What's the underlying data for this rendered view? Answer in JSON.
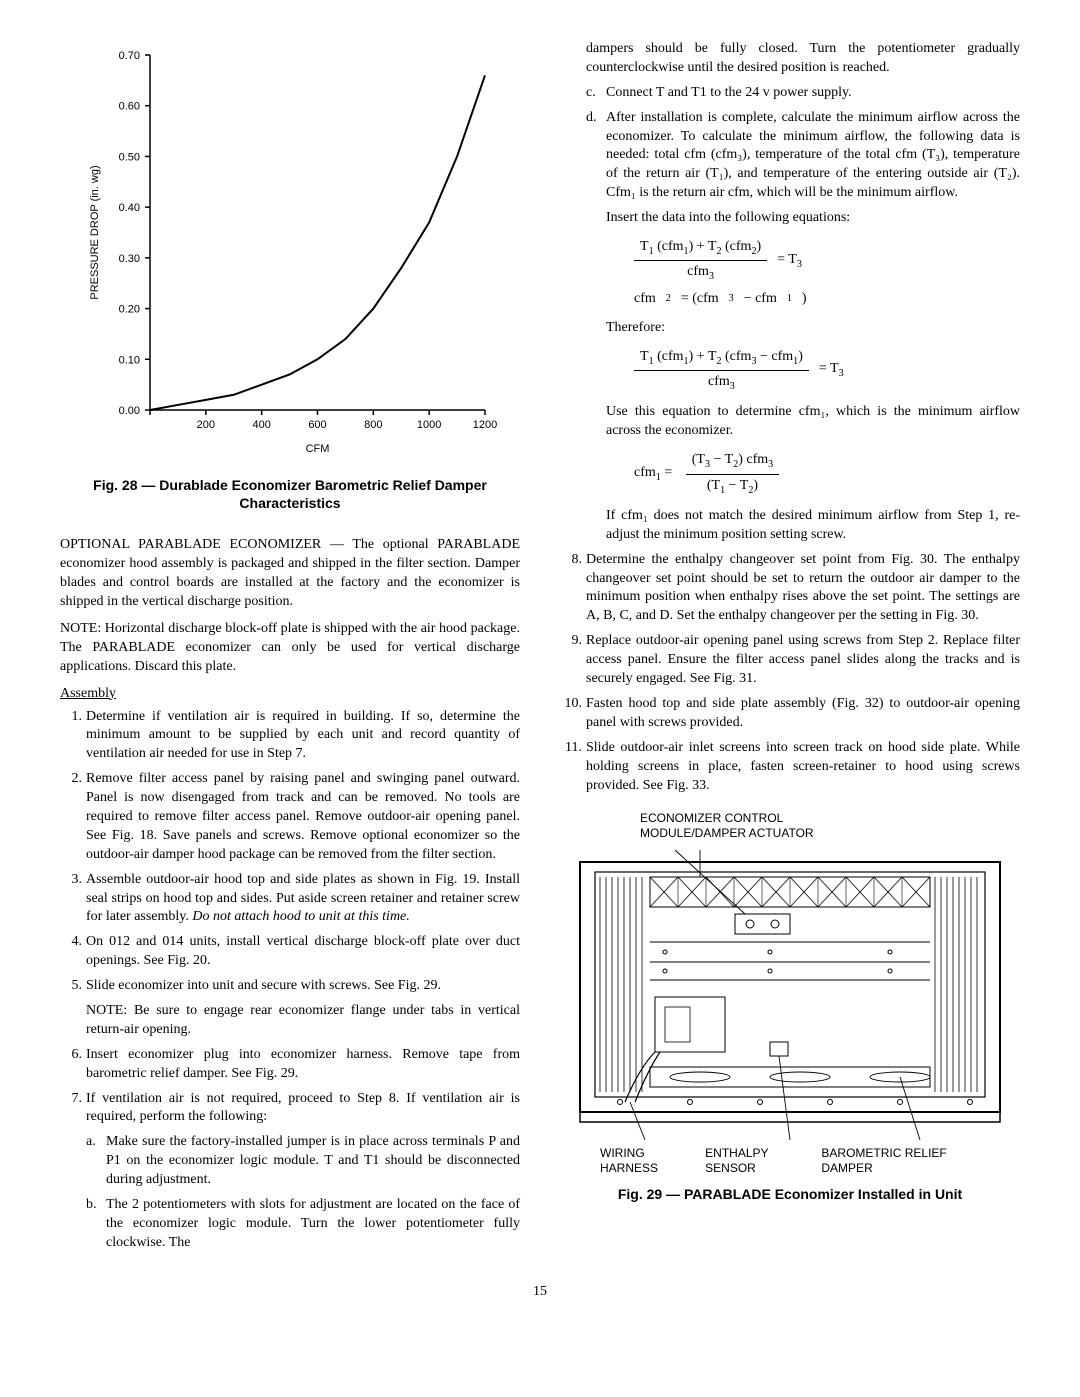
{
  "chart": {
    "type": "line",
    "title_x": "CFM",
    "title_y": "PRESSURE DROP (in. wg)",
    "xlim": [
      0,
      1200
    ],
    "ylim": [
      0.0,
      0.7
    ],
    "xticks": [
      0,
      200,
      400,
      600,
      800,
      1000,
      1200
    ],
    "yticks": [
      0.0,
      0.1,
      0.2,
      0.3,
      0.4,
      0.5,
      0.6,
      0.7
    ],
    "series_x": [
      0,
      100,
      200,
      300,
      400,
      500,
      600,
      700,
      800,
      900,
      1000,
      1100,
      1200
    ],
    "series_y": [
      0.0,
      0.01,
      0.02,
      0.03,
      0.05,
      0.07,
      0.1,
      0.14,
      0.2,
      0.28,
      0.37,
      0.5,
      0.66
    ],
    "line_color": "#000000",
    "line_width": 2,
    "axis_color": "#000000",
    "tick_fontsize": 11,
    "label_fontsize": 11,
    "background_color": "#ffffff",
    "label_font": "Arial"
  },
  "fig28_caption": "Fig. 28 — Durablade Economizer Barometric Relief Damper Characteristics",
  "left_intro": "OPTIONAL PARABLADE ECONOMIZER — The optional PARABLADE economizer hood assembly is packaged and shipped in the filter section. Damper blades and control boards are installed at the factory and the economizer is shipped in the vertical discharge position.",
  "left_note": "NOTE: Horizontal discharge block-off plate is shipped with the air hood package. The PARABLADE economizer can only be used for vertical discharge applications. Discard this plate.",
  "assembly_head": "Assembly",
  "steps": {
    "s1": "Determine if ventilation air is required in building. If so, determine the minimum amount to be supplied by each unit and record quantity of ventilation air needed for use in Step 7.",
    "s2": "Remove filter access panel by raising panel and swinging panel outward. Panel is now disengaged from track and can be removed. No tools are required to remove filter access panel. Remove outdoor-air opening panel. See Fig. 18. Save panels and screws. Remove optional economizer so the outdoor-air damper hood package can be removed from the filter section.",
    "s3": "Assemble outdoor-air hood top and side plates as shown in Fig. 19. Install seal strips on hood top and sides. Put aside screen retainer and retainer screw for later assembly. ",
    "s3_ital": "Do not attach hood to unit at this time.",
    "s4": "On 012 and 014 units, install vertical discharge block-off plate over duct openings. See Fig. 20.",
    "s5": "Slide economizer into unit and secure with screws. See Fig. 29.",
    "s5_note": "NOTE: Be sure to engage rear economizer flange under tabs in vertical return-air opening.",
    "s6": "Insert economizer plug into economizer harness. Remove tape from barometric relief damper. See Fig. 29.",
    "s7": "If ventilation air is not required, proceed to Step 8. If ventilation air is required, perform the following:",
    "s7a": "Make sure the factory-installed jumper is in place across terminals P and P1 on the economizer logic module. T and T1 should be disconnected during adjustment.",
    "s7b": "The 2 potentiometers with slots for adjustment are located on the face of the economizer logic module. Turn the lower potentiometer fully clockwise. The",
    "s7b_cont": "dampers should be fully closed. Turn the potentiometer gradually counterclockwise until the desired position is reached.",
    "s7c": "Connect T and T1 to the 24 v power supply.",
    "s7d": "After installation is complete, calculate the minimum airflow across the economizer. To calculate the minimum airflow, the following data is needed: total cfm (cfm₃), temperature of the total cfm (T₃), temperature of the return air (T₁), and temperature of the entering outside air (T₂). Cfm₁ is the return air cfm, which will be the minimum airflow.",
    "s7d_insert": "Insert the data into the following equations:",
    "s7d_therefore": "Therefore:",
    "s7d_use": "Use this equation to determine cfm₁, which is the minimum airflow across the economizer.",
    "s7d_ifcfm": "If cfm₁ does not match the desired minimum airflow from Step 1, re-adjust the minimum position setting screw.",
    "s8": "Determine the enthalpy changeover set point from Fig. 30. The enthalpy changeover set point should be set to return the outdoor air damper to the minimum position when enthalpy rises above the set point. The settings are A, B, C, and D. Set the enthalpy changeover per the setting in Fig. 30.",
    "s9": "Replace outdoor-air opening panel using screws from Step 2. Replace filter access panel. Ensure the filter access panel slides along the tracks and is securely engaged. See Fig. 31.",
    "s10": "Fasten hood top and side plate assembly (Fig. 32) to outdoor-air opening panel with screws provided.",
    "s11": "Slide outdoor-air inlet screens into screen track on hood side plate. While holding screens in place, fasten screen-retainer to hood using screws provided. See Fig. 33."
  },
  "diagram": {
    "label_top_1": "ECONOMIZER CONTROL",
    "label_top_2": "MODULE/DAMPER ACTUATOR",
    "label_bot_1": "WIRING HARNESS",
    "label_bot_2": "ENTHALPY SENSOR",
    "label_bot_3": "BAROMETRIC RELIEF DAMPER",
    "stroke_color": "#000000",
    "bg_color": "#ffffff"
  },
  "fig29_caption": "Fig. 29 — PARABLADE Economizer Installed in Unit",
  "page_number": "15"
}
